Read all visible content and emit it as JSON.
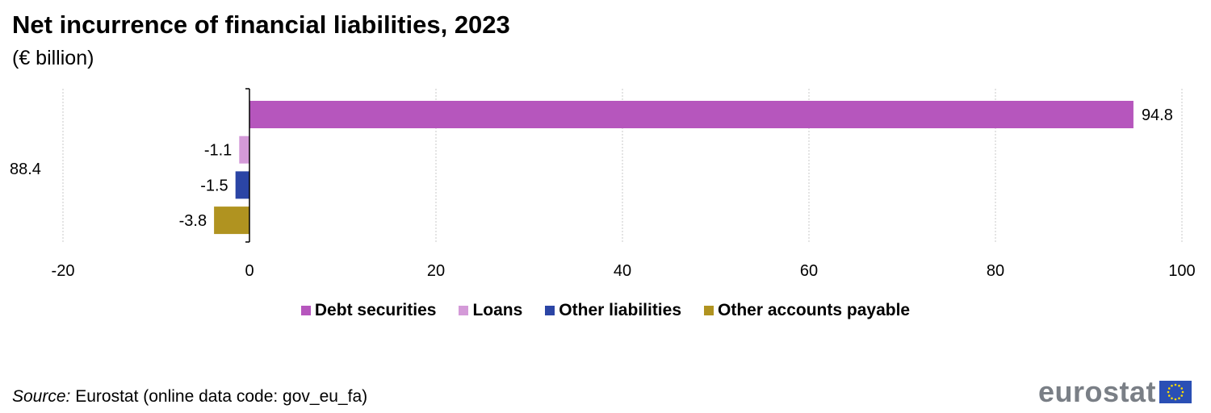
{
  "title": "Net incurrence of financial liabilities, 2023",
  "subtitle": "(€ billion)",
  "chart_data": {
    "type": "bar",
    "orientation": "horizontal",
    "title": "Net incurrence of financial liabilities, 2023",
    "subtitle": "(€ billion)",
    "total_label": "88.4",
    "categories": [
      "Debt securities",
      "Loans",
      "Other liabilities",
      "Other accounts payable"
    ],
    "values": [
      94.8,
      -1.1,
      -1.5,
      -3.8
    ],
    "value_labels": [
      "94.8",
      "-1.1",
      "-1.5",
      "-3.8"
    ],
    "colors": [
      "#b656bd",
      "#d49ad8",
      "#2b45a5",
      "#b09320"
    ],
    "xlim": [
      -20,
      100
    ],
    "xticks": [
      -20,
      0,
      20,
      40,
      60,
      80,
      100
    ],
    "xtick_labels": [
      "-20",
      "0",
      "20",
      "40",
      "60",
      "80",
      "100"
    ],
    "grid": "vertical dashed",
    "legend_position": "bottom"
  },
  "legend": [
    {
      "label": "Debt securities",
      "color": "#b656bd"
    },
    {
      "label": "Loans",
      "color": "#d49ad8"
    },
    {
      "label": "Other liabilities",
      "color": "#2b45a5"
    },
    {
      "label": "Other accounts payable",
      "color": "#b09320"
    }
  ],
  "source": {
    "prefix": "Source:",
    "text": " Eurostat (online data code: gov_eu_fa)"
  },
  "logo": {
    "text": "eurostat"
  }
}
